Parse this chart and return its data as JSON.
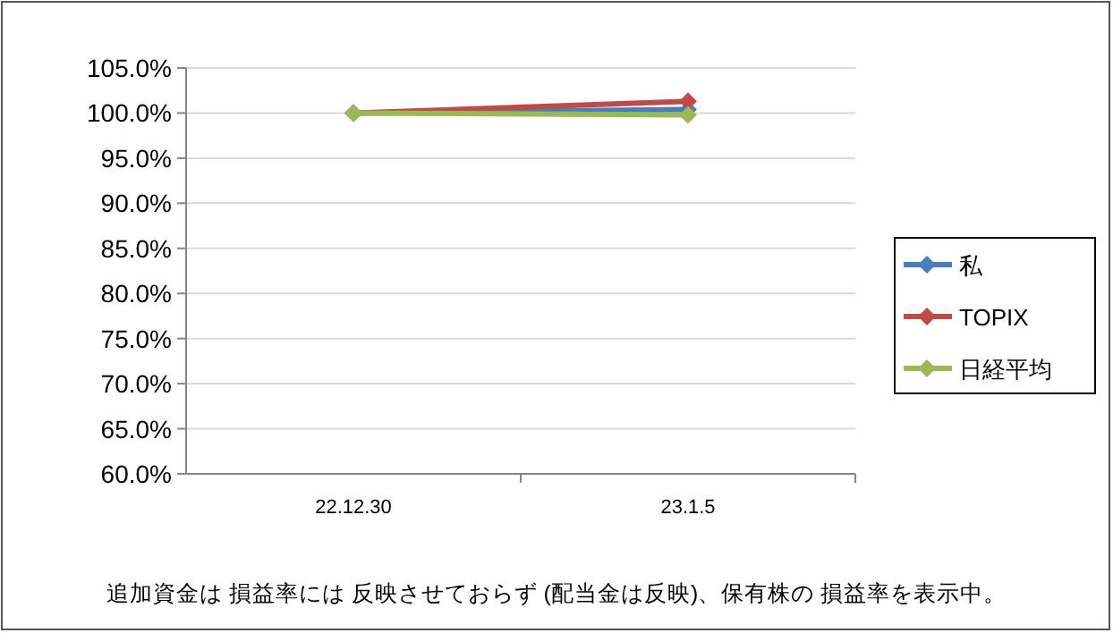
{
  "chart_data": {
    "type": "line",
    "categories": [
      "22.12.30",
      "23.1.5"
    ],
    "series": [
      {
        "name": "私",
        "color": "#4a7ebb",
        "values": [
          100.0,
          100.4
        ]
      },
      {
        "name": "TOPIX",
        "color": "#be4b48",
        "values": [
          100.0,
          101.3
        ]
      },
      {
        "name": "日経平均",
        "color": "#98b954",
        "values": [
          100.0,
          99.8
        ]
      }
    ],
    "ylim": [
      60,
      105
    ],
    "yticks": [
      {
        "value": 60,
        "label": "60.0%"
      },
      {
        "value": 65,
        "label": "65.0%"
      },
      {
        "value": 70,
        "label": "70.0%"
      },
      {
        "value": 75,
        "label": "75.0%"
      },
      {
        "value": 80,
        "label": "80.0%"
      },
      {
        "value": 85,
        "label": "85.0%"
      },
      {
        "value": 90,
        "label": "90.0%"
      },
      {
        "value": 95,
        "label": "95.0%"
      },
      {
        "value": 100,
        "label": "100.0%"
      },
      {
        "value": 105,
        "label": "105.0%"
      }
    ],
    "grid": "y",
    "legend": "right",
    "marker": "diamond",
    "line_style": "solid",
    "annotations": [
      "追加資金は 損益率には 反映させておらず (配当金は反映)、保有株の 損益率を表示中。"
    ]
  }
}
